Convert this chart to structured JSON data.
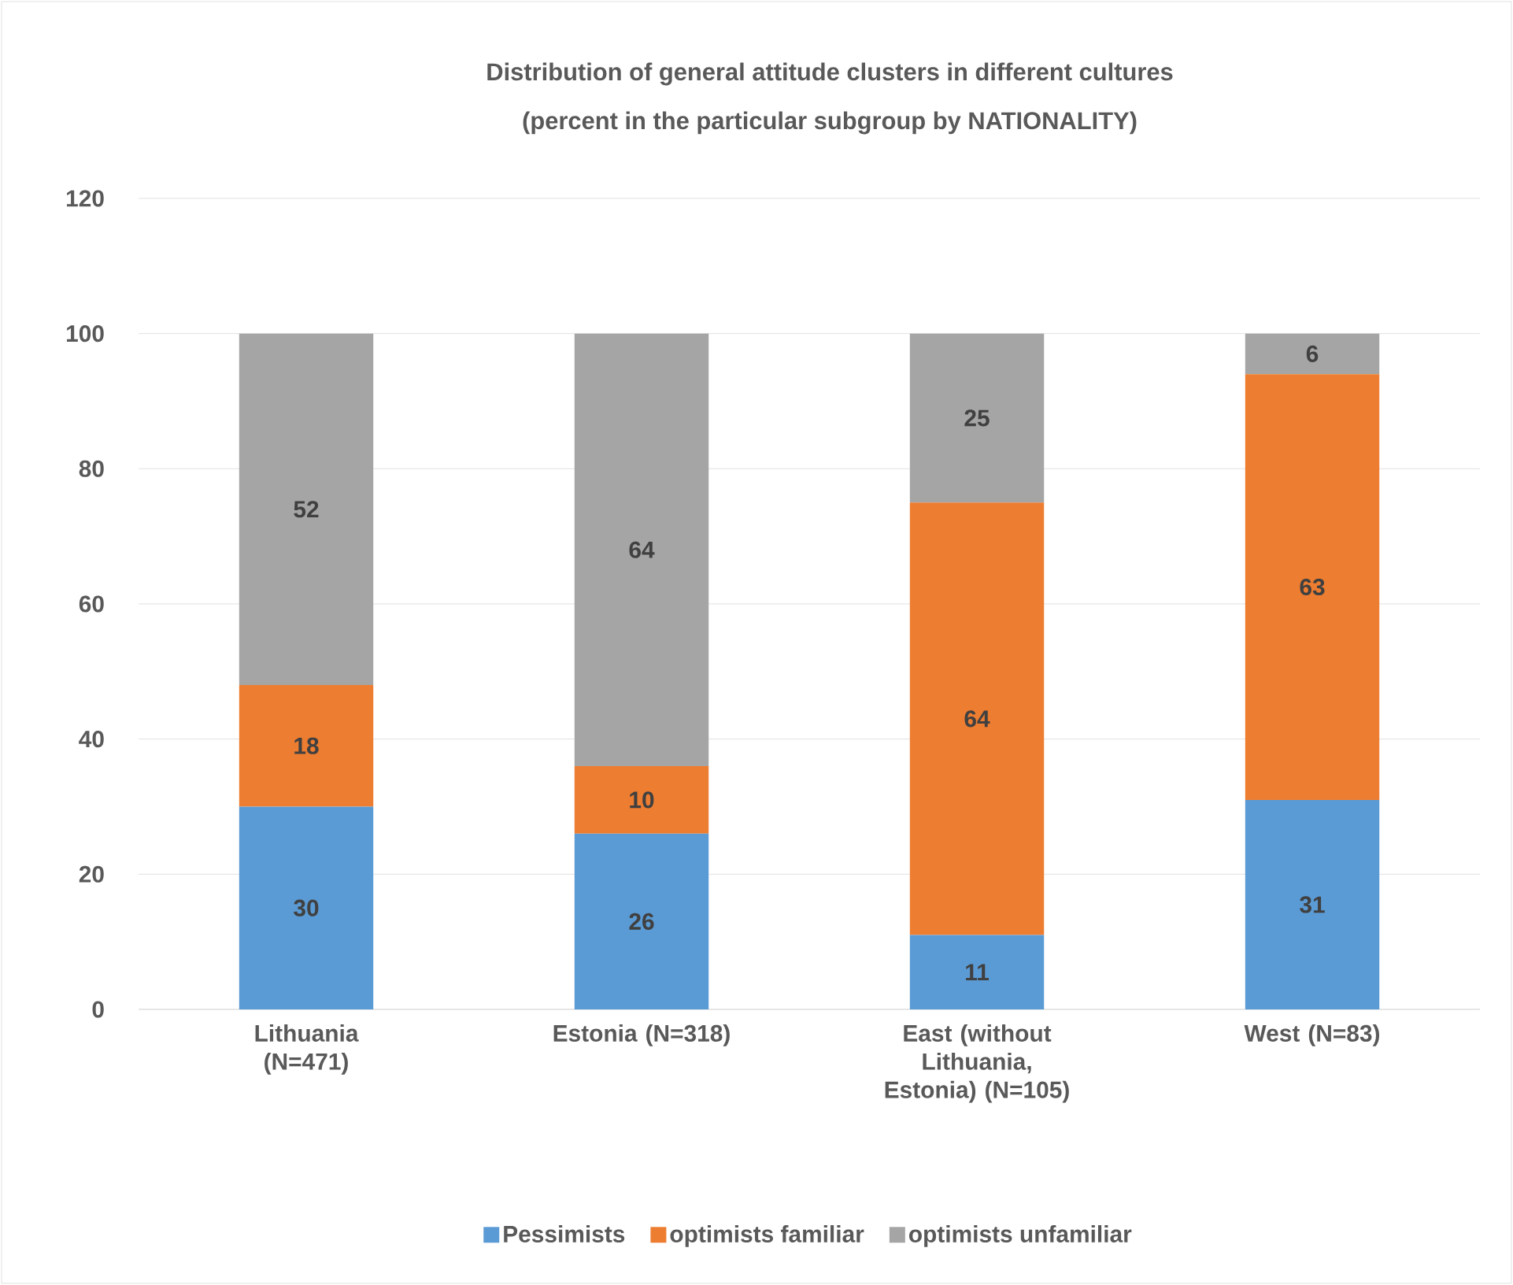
{
  "chart_data": {
    "type": "bar",
    "stacked": true,
    "title": "Distribution of general attitude clusters in different cultures",
    "subtitle": "(percent in the particular subgroup by NATIONALITY)",
    "categories": [
      "Lithuania (N=471)",
      "Estonia (N=318)",
      "East (without Lithuania, Estonia) (N=105)",
      "West (N=83)"
    ],
    "series": [
      {
        "name": "Pessimists",
        "color": "#5b9bd5",
        "values": [
          30,
          26,
          11,
          31
        ]
      },
      {
        "name": "optimists familiar",
        "color": "#ed7d31",
        "values": [
          18,
          10,
          64,
          63
        ]
      },
      {
        "name": "optimists unfamiliar",
        "color": "#a5a5a5",
        "values": [
          52,
          64,
          25,
          6
        ]
      }
    ],
    "ylim": [
      0,
      120
    ],
    "yticks": [
      0,
      20,
      40,
      60,
      80,
      100,
      120
    ],
    "grid": "y",
    "legend": "bottom",
    "data_labels": true
  }
}
